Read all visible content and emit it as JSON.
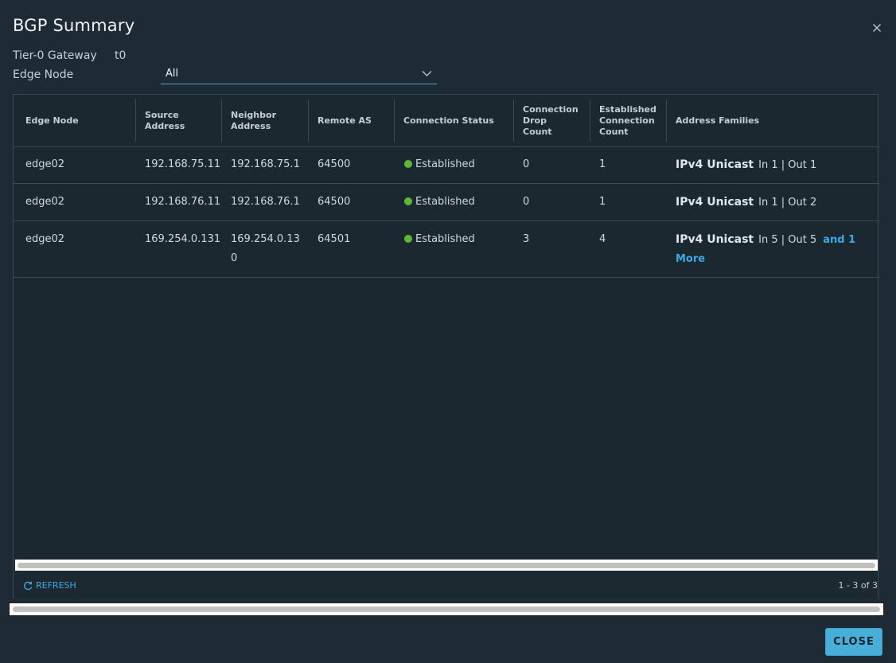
{
  "dialog": {
    "title": "BGP Summary",
    "close_icon": "close-icon"
  },
  "meta": {
    "gateway_label": "Tier-0 Gateway",
    "gateway_value": "t0",
    "edge_node_label": "Edge Node",
    "edge_node_selected": "All"
  },
  "table": {
    "columns": [
      "Edge Node",
      "Source Address",
      "Neighbor Address",
      "Remote AS",
      "Connection Status",
      "Connection Drop Count",
      "Established Connection Count",
      "Address Families"
    ],
    "rows": [
      {
        "edge_node": "edge02",
        "source": "192.168.75.11",
        "neighbor_l1": "192.168.75.1",
        "neighbor_l2": "",
        "remote_as": "64500",
        "status": "Established",
        "drop_count": "0",
        "established_count": "1",
        "af_name": "IPv4 Unicast",
        "af_inout": "In 1 | Out 1",
        "af_more": ""
      },
      {
        "edge_node": "edge02",
        "source": "192.168.76.11",
        "neighbor_l1": "192.168.76.1",
        "neighbor_l2": "",
        "remote_as": "64500",
        "status": "Established",
        "drop_count": "0",
        "established_count": "1",
        "af_name": "IPv4 Unicast",
        "af_inout": "In 1 | Out 2",
        "af_more": ""
      },
      {
        "edge_node": "edge02",
        "source": "169.254.0.131",
        "neighbor_l1": "169.254.0.13",
        "neighbor_l2": "0",
        "remote_as": "64501",
        "status": "Established",
        "drop_count": "3",
        "established_count": "4",
        "af_name": "IPv4 Unicast",
        "af_inout": "In 5 | Out 5",
        "af_more": "and 1 More"
      }
    ],
    "status_color": "#5fb832"
  },
  "footer": {
    "refresh_label": "REFRESH",
    "pagination": "1 - 3 of 3"
  },
  "actions": {
    "close_label": "CLOSE"
  },
  "colors": {
    "accent": "#49afd9",
    "link": "#3ea9e6",
    "background": "#1e2b34"
  }
}
